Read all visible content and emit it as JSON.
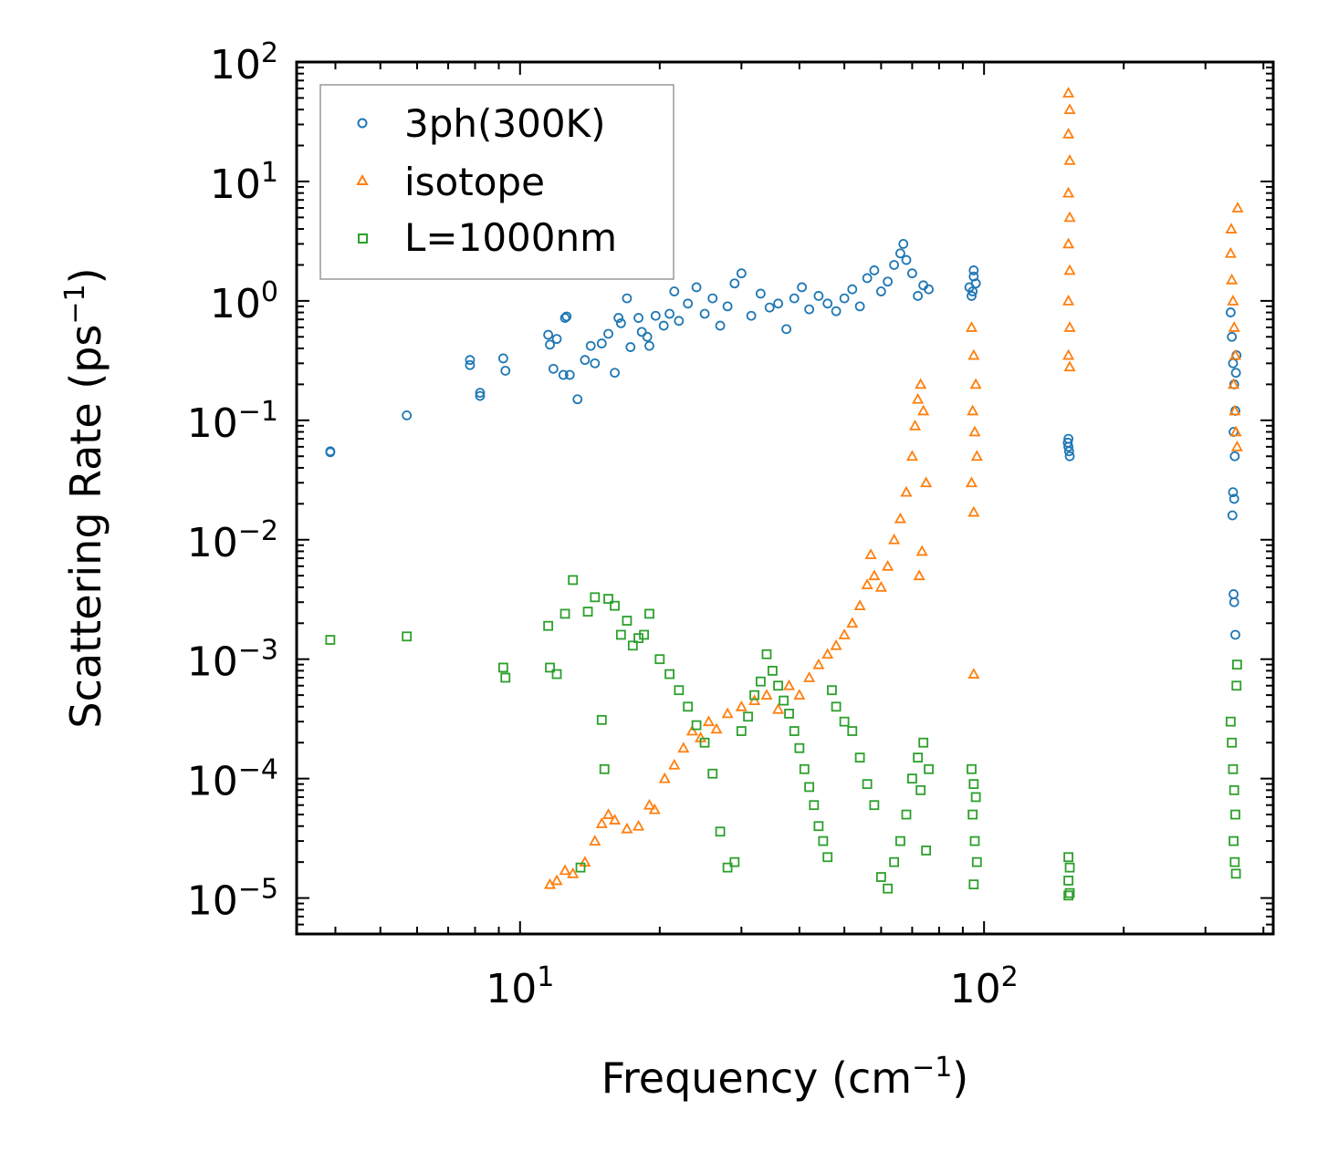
{
  "chart_data": {
    "type": "scatter",
    "title": "",
    "xlabel": {
      "base": "Frequency (cm",
      "exp": "−1",
      "tail": ")"
    },
    "ylabel": {
      "base": "Scattering Rate (ps",
      "exp": "−1",
      "tail": ")"
    },
    "xscale": "log",
    "yscale": "log",
    "xlim": [
      3.3,
      420
    ],
    "ylim": [
      5e-06,
      100
    ],
    "x_major_ticks": [
      {
        "value": 10,
        "base": "10",
        "exp": "1"
      },
      {
        "value": 100,
        "base": "10",
        "exp": "2"
      }
    ],
    "y_major_ticks": [
      {
        "value": 1e-05,
        "base": "10",
        "exp": "−5"
      },
      {
        "value": 0.0001,
        "base": "10",
        "exp": "−4"
      },
      {
        "value": 0.001,
        "base": "10",
        "exp": "−3"
      },
      {
        "value": 0.01,
        "base": "10",
        "exp": "−2"
      },
      {
        "value": 0.1,
        "base": "10",
        "exp": "−1"
      },
      {
        "value": 1,
        "base": "10",
        "exp": "0"
      },
      {
        "value": 10,
        "base": "10",
        "exp": "1"
      },
      {
        "value": 100,
        "base": "10",
        "exp": "2"
      }
    ],
    "legend_position": "top-left",
    "series": [
      {
        "name": "3ph(300K)",
        "marker": "circle",
        "color": "#1f77b4",
        "points": [
          [
            3.9,
            0.055
          ],
          [
            3.9,
            0.054
          ],
          [
            5.7,
            0.11
          ],
          [
            7.8,
            0.32
          ],
          [
            7.8,
            0.29
          ],
          [
            8.2,
            0.17
          ],
          [
            8.2,
            0.16
          ],
          [
            9.2,
            0.33
          ],
          [
            9.3,
            0.26
          ],
          [
            11.5,
            0.52
          ],
          [
            11.6,
            0.43
          ],
          [
            11.8,
            0.27
          ],
          [
            12.0,
            0.48
          ],
          [
            12.4,
            0.24
          ],
          [
            12.5,
            0.72
          ],
          [
            12.6,
            0.74
          ],
          [
            12.8,
            0.24
          ],
          [
            13.3,
            0.15
          ],
          [
            13.8,
            0.32
          ],
          [
            14.2,
            0.42
          ],
          [
            14.5,
            0.3
          ],
          [
            15.0,
            0.44
          ],
          [
            15.5,
            0.53
          ],
          [
            16.0,
            0.25
          ],
          [
            16.3,
            0.72
          ],
          [
            16.5,
            0.65
          ],
          [
            17.0,
            1.05
          ],
          [
            17.3,
            0.41
          ],
          [
            18.0,
            0.72
          ],
          [
            18.3,
            0.55
          ],
          [
            18.8,
            0.5
          ],
          [
            19.0,
            0.42
          ],
          [
            19.6,
            0.75
          ],
          [
            20.4,
            0.62
          ],
          [
            21.0,
            0.78
          ],
          [
            21.5,
            1.2
          ],
          [
            22.0,
            0.68
          ],
          [
            23.0,
            0.95
          ],
          [
            24.0,
            1.3
          ],
          [
            25.0,
            0.78
          ],
          [
            26.0,
            1.05
          ],
          [
            27.0,
            0.62
          ],
          [
            28.0,
            0.9
          ],
          [
            29.0,
            1.4
          ],
          [
            30.0,
            1.7
          ],
          [
            31.5,
            0.75
          ],
          [
            33.0,
            1.15
          ],
          [
            34.5,
            0.88
          ],
          [
            36.0,
            0.95
          ],
          [
            37.5,
            0.58
          ],
          [
            39.0,
            1.05
          ],
          [
            40.5,
            1.3
          ],
          [
            42.0,
            0.85
          ],
          [
            44.0,
            1.1
          ],
          [
            46.0,
            0.95
          ],
          [
            48.0,
            0.82
          ],
          [
            50.0,
            1.05
          ],
          [
            52.0,
            1.25
          ],
          [
            54.0,
            0.9
          ],
          [
            56.0,
            1.55
          ],
          [
            58.0,
            1.8
          ],
          [
            60.0,
            1.2
          ],
          [
            62.0,
            1.45
          ],
          [
            64.0,
            2.0
          ],
          [
            66.0,
            2.5
          ],
          [
            67.0,
            3.0
          ],
          [
            68.0,
            2.2
          ],
          [
            70.0,
            1.7
          ],
          [
            72.0,
            1.1
          ],
          [
            74.0,
            1.35
          ],
          [
            76.0,
            1.25
          ],
          [
            93.0,
            1.3
          ],
          [
            94.0,
            1.1
          ],
          [
            95.0,
            1.6
          ],
          [
            96.0,
            1.4
          ],
          [
            95.0,
            1.8
          ],
          [
            94.5,
            1.2
          ],
          [
            152.0,
            0.07
          ],
          [
            152.0,
            0.06
          ],
          [
            153.0,
            0.05
          ],
          [
            151.5,
            0.065
          ],
          [
            152.5,
            0.055
          ],
          [
            340.0,
            0.8
          ],
          [
            342.0,
            0.5
          ],
          [
            344.0,
            0.3
          ],
          [
            346.0,
            0.2
          ],
          [
            348.0,
            0.12
          ],
          [
            345.0,
            0.08
          ],
          [
            347.0,
            0.05
          ],
          [
            344.0,
            0.025
          ],
          [
            346.0,
            0.022
          ],
          [
            343.0,
            0.016
          ],
          [
            345.0,
            0.0035
          ],
          [
            346.0,
            0.003
          ],
          [
            348.0,
            0.0016
          ],
          [
            350.0,
            0.35
          ],
          [
            349.0,
            0.25
          ]
        ]
      },
      {
        "name": "isotope",
        "marker": "triangle",
        "color": "#ff7f0e",
        "points": [
          [
            11.6,
            1.3e-05
          ],
          [
            12.0,
            1.4e-05
          ],
          [
            12.5,
            1.7e-05
          ],
          [
            13.0,
            1.6e-05
          ],
          [
            13.8,
            2e-05
          ],
          [
            14.5,
            3e-05
          ],
          [
            15.0,
            4.2e-05
          ],
          [
            15.5,
            5e-05
          ],
          [
            16.0,
            4.5e-05
          ],
          [
            17.0,
            3.8e-05
          ],
          [
            18.0,
            4e-05
          ],
          [
            19.0,
            6e-05
          ],
          [
            19.5,
            5.5e-05
          ],
          [
            20.5,
            0.0001
          ],
          [
            21.5,
            0.00013
          ],
          [
            22.5,
            0.00018
          ],
          [
            23.5,
            0.00025
          ],
          [
            24.5,
            0.00022
          ],
          [
            25.5,
            0.0003
          ],
          [
            26.5,
            0.00026
          ],
          [
            28.0,
            0.00035
          ],
          [
            30.0,
            0.0004
          ],
          [
            32.0,
            0.00045
          ],
          [
            34.0,
            0.0005
          ],
          [
            36.0,
            0.00038
          ],
          [
            38.0,
            0.0006
          ],
          [
            40.0,
            0.0005
          ],
          [
            42.0,
            0.0007
          ],
          [
            44.0,
            0.0009
          ],
          [
            46.0,
            0.0011
          ],
          [
            48.0,
            0.0013
          ],
          [
            50.0,
            0.0016
          ],
          [
            52.0,
            0.002
          ],
          [
            54.0,
            0.0028
          ],
          [
            56.0,
            0.0042
          ],
          [
            57.0,
            0.0075
          ],
          [
            58.0,
            0.005
          ],
          [
            60.0,
            0.004
          ],
          [
            62.0,
            0.006
          ],
          [
            64.0,
            0.01
          ],
          [
            66.0,
            0.015
          ],
          [
            68.0,
            0.025
          ],
          [
            70.0,
            0.05
          ],
          [
            71.0,
            0.09
          ],
          [
            72.0,
            0.15
          ],
          [
            73.0,
            0.2
          ],
          [
            74.0,
            0.12
          ],
          [
            75.0,
            0.03
          ],
          [
            73.5,
            0.008
          ],
          [
            72.5,
            0.005
          ],
          [
            94.0,
            0.6
          ],
          [
            95.0,
            0.35
          ],
          [
            96.0,
            0.2
          ],
          [
            94.5,
            0.12
          ],
          [
            95.5,
            0.08
          ],
          [
            96.5,
            0.05
          ],
          [
            94.0,
            0.03
          ],
          [
            95.0,
            0.017
          ],
          [
            95.0,
            0.00075
          ],
          [
            152.0,
            55.0
          ],
          [
            153.0,
            40.0
          ],
          [
            152.0,
            25.0
          ],
          [
            153.0,
            15.0
          ],
          [
            152.0,
            8.0
          ],
          [
            153.0,
            5.0
          ],
          [
            152.0,
            3.0
          ],
          [
            153.0,
            1.8
          ],
          [
            152.0,
            1.0
          ],
          [
            153.0,
            0.6
          ],
          [
            152.0,
            0.35
          ],
          [
            153.0,
            0.28
          ],
          [
            340.0,
            2.5
          ],
          [
            342.0,
            1.5
          ],
          [
            344.0,
            1.0
          ],
          [
            346.0,
            0.6
          ],
          [
            348.0,
            0.35
          ],
          [
            345.0,
            0.2
          ],
          [
            347.0,
            0.12
          ],
          [
            349.0,
            0.08
          ],
          [
            351.0,
            0.06
          ],
          [
            352.0,
            6.0
          ],
          [
            341.0,
            4.0
          ]
        ]
      },
      {
        "name": "L=1000nm",
        "marker": "square",
        "color": "#2ca02c",
        "points": [
          [
            3.9,
            0.00145
          ],
          [
            5.7,
            0.00155
          ],
          [
            9.2,
            0.00085
          ],
          [
            9.3,
            0.0007
          ],
          [
            11.5,
            0.0019
          ],
          [
            11.6,
            0.00085
          ],
          [
            12.0,
            0.00075
          ],
          [
            12.5,
            0.0024
          ],
          [
            13.0,
            0.0046
          ],
          [
            13.5,
            1.8e-05
          ],
          [
            14.0,
            0.0025
          ],
          [
            14.5,
            0.0033
          ],
          [
            15.0,
            0.00031
          ],
          [
            15.2,
            0.00012
          ],
          [
            15.5,
            0.0032
          ],
          [
            16.0,
            0.0028
          ],
          [
            16.5,
            0.0016
          ],
          [
            17.0,
            0.0021
          ],
          [
            17.5,
            0.0013
          ],
          [
            18.0,
            0.0015
          ],
          [
            18.5,
            0.0016
          ],
          [
            19.0,
            0.0024
          ],
          [
            20.0,
            0.001
          ],
          [
            21.0,
            0.00075
          ],
          [
            22.0,
            0.00055
          ],
          [
            23.0,
            0.0004
          ],
          [
            24.0,
            0.00028
          ],
          [
            25.0,
            0.0002
          ],
          [
            26.0,
            0.00011
          ],
          [
            27.0,
            3.6e-05
          ],
          [
            28.0,
            1.8e-05
          ],
          [
            29.0,
            2e-05
          ],
          [
            30.0,
            0.00025
          ],
          [
            31.0,
            0.00033
          ],
          [
            32.0,
            0.0005
          ],
          [
            33.0,
            0.00065
          ],
          [
            34.0,
            0.0011
          ],
          [
            35.0,
            0.0008
          ],
          [
            36.0,
            0.0006
          ],
          [
            37.0,
            0.00045
          ],
          [
            38.0,
            0.00035
          ],
          [
            39.0,
            0.00025
          ],
          [
            40.0,
            0.00018
          ],
          [
            41.0,
            0.00012
          ],
          [
            42.0,
            8.5e-05
          ],
          [
            43.0,
            6e-05
          ],
          [
            44.0,
            4e-05
          ],
          [
            45.0,
            3e-05
          ],
          [
            46.0,
            2.2e-05
          ],
          [
            47.0,
            0.00055
          ],
          [
            48.0,
            0.0004
          ],
          [
            50.0,
            0.0003
          ],
          [
            52.0,
            0.00025
          ],
          [
            54.0,
            0.00015
          ],
          [
            56.0,
            9e-05
          ],
          [
            58.0,
            6e-05
          ],
          [
            60.0,
            1.5e-05
          ],
          [
            62.0,
            1.2e-05
          ],
          [
            64.0,
            2e-05
          ],
          [
            66.0,
            3e-05
          ],
          [
            68.0,
            5e-05
          ],
          [
            70.0,
            0.0001
          ],
          [
            72.0,
            0.00015
          ],
          [
            74.0,
            0.0002
          ],
          [
            76.0,
            0.00012
          ],
          [
            73.0,
            8e-05
          ],
          [
            75.0,
            2.5e-05
          ],
          [
            94.0,
            0.00012
          ],
          [
            95.0,
            9e-05
          ],
          [
            96.0,
            7e-05
          ],
          [
            94.5,
            5e-05
          ],
          [
            95.5,
            3e-05
          ],
          [
            96.5,
            2e-05
          ],
          [
            95.0,
            1.3e-05
          ],
          [
            152.0,
            2.2e-05
          ],
          [
            153.0,
            1.8e-05
          ],
          [
            152.0,
            1.4e-05
          ],
          [
            153.0,
            1.1e-05
          ],
          [
            152.0,
            1.05e-05
          ],
          [
            340.0,
            0.0003
          ],
          [
            342.0,
            0.0002
          ],
          [
            344.0,
            0.00012
          ],
          [
            346.0,
            8e-05
          ],
          [
            348.0,
            5e-05
          ],
          [
            345.0,
            3e-05
          ],
          [
            347.0,
            2e-05
          ],
          [
            349.0,
            1.6e-05
          ],
          [
            351.0,
            0.0009
          ],
          [
            350.0,
            0.0006
          ]
        ]
      }
    ]
  }
}
